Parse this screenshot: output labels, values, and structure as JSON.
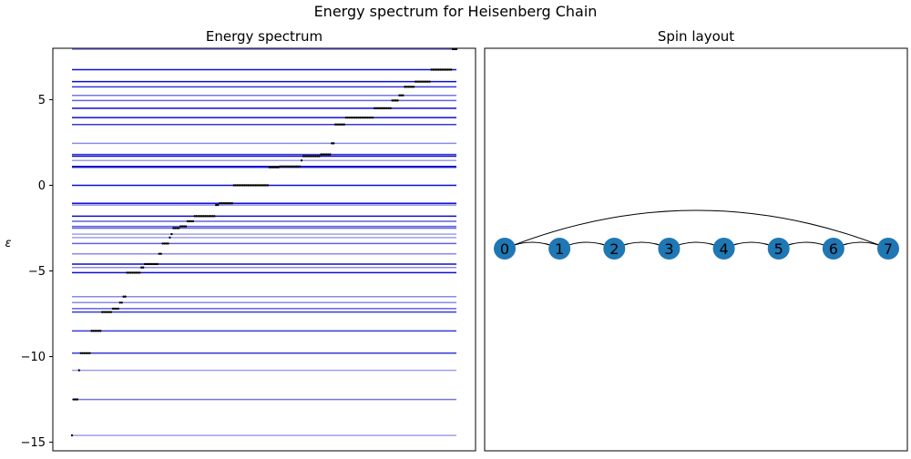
{
  "suptitle": "Energy spectrum for Heisenberg Chain",
  "chart_data": [
    {
      "type": "scatter",
      "title": "Energy spectrum",
      "ylabel": "ε",
      "ylim": [
        -15.5,
        8.0
      ],
      "yticks": [
        -15,
        -10,
        -5,
        0,
        5
      ],
      "ytick_labels": [
        "−15",
        "−10",
        "−5",
        "0",
        "5"
      ],
      "xticks_visible": false,
      "grid": false,
      "level_color": "#0000cd",
      "point_color": "#000000",
      "levels": [
        {
          "energy": -14.6,
          "degeneracy": 1
        },
        {
          "energy": -12.5,
          "degeneracy": 3
        },
        {
          "energy": -10.8,
          "degeneracy": 1
        },
        {
          "energy": -9.8,
          "degeneracy": 6
        },
        {
          "energy": -8.5,
          "degeneracy": 6
        },
        {
          "energy": -7.4,
          "degeneracy": 6
        },
        {
          "energy": -7.2,
          "degeneracy": 4
        },
        {
          "energy": -6.85,
          "degeneracy": 2
        },
        {
          "energy": -6.5,
          "degeneracy": 2
        },
        {
          "energy": -5.1,
          "degeneracy": 8
        },
        {
          "energy": -4.8,
          "degeneracy": 2
        },
        {
          "energy": -4.6,
          "degeneracy": 8
        },
        {
          "energy": -4.0,
          "degeneracy": 2
        },
        {
          "energy": -3.4,
          "degeneracy": 4
        },
        {
          "energy": -3.05,
          "degeneracy": 1
        },
        {
          "energy": -2.85,
          "degeneracy": 1
        },
        {
          "energy": -2.5,
          "degeneracy": 4
        },
        {
          "energy": -2.4,
          "degeneracy": 4
        },
        {
          "energy": -2.1,
          "degeneracy": 4
        },
        {
          "energy": -1.8,
          "degeneracy": 12
        },
        {
          "energy": -1.15,
          "degeneracy": 2
        },
        {
          "energy": -1.05,
          "degeneracy": 8
        },
        {
          "energy": 0.0,
          "degeneracy": 20
        },
        {
          "energy": 1.05,
          "degeneracy": 6
        },
        {
          "energy": 1.1,
          "degeneracy": 12
        },
        {
          "energy": 1.45,
          "degeneracy": 1
        },
        {
          "energy": 1.7,
          "degeneracy": 10
        },
        {
          "energy": 1.8,
          "degeneracy": 6
        },
        {
          "energy": 2.45,
          "degeneracy": 2
        },
        {
          "energy": 3.55,
          "degeneracy": 6
        },
        {
          "energy": 3.95,
          "degeneracy": 16
        },
        {
          "energy": 4.5,
          "degeneracy": 10
        },
        {
          "energy": 4.95,
          "degeneracy": 4
        },
        {
          "energy": 5.25,
          "degeneracy": 3
        },
        {
          "energy": 5.75,
          "degeneracy": 6
        },
        {
          "energy": 6.05,
          "degeneracy": 9
        },
        {
          "energy": 6.75,
          "degeneracy": 12
        },
        {
          "energy": 7.95,
          "degeneracy": 3
        }
      ]
    },
    {
      "type": "graph",
      "title": "Spin layout",
      "node_color": "#1f77b4",
      "nodes": [
        "0",
        "1",
        "2",
        "3",
        "4",
        "5",
        "6",
        "7"
      ],
      "edges": [
        [
          0,
          1
        ],
        [
          1,
          2
        ],
        [
          2,
          3
        ],
        [
          3,
          4
        ],
        [
          4,
          5
        ],
        [
          5,
          6
        ],
        [
          6,
          7
        ],
        [
          0,
          7
        ]
      ]
    }
  ]
}
